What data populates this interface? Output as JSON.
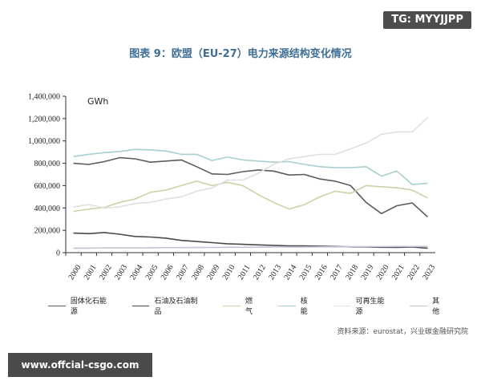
{
  "badge": "TG: MYYJJPP",
  "watermark": "www.offcial-csgo.com",
  "source": "资料来源：eurostat，兴业碳金融研究院",
  "chart_data": {
    "type": "line",
    "title": "图表 9：欧盟（EU-27）电力来源结构变化情况",
    "ylabel": "GWh",
    "xlabel": "",
    "ylim": [
      0,
      1400000
    ],
    "y_ticks": [
      "0",
      "200,000",
      "400,000",
      "600,000",
      "800,000",
      "1,000,000",
      "1,200,000",
      "1,400,000"
    ],
    "legend_position": "bottom",
    "grid": false,
    "categories": [
      "2000",
      "2001",
      "2002",
      "2003",
      "2004",
      "2005",
      "2006",
      "2007",
      "2008",
      "2009",
      "2010",
      "2011",
      "2012",
      "2013",
      "2014",
      "2015",
      "2016",
      "2017",
      "2018",
      "2019",
      "2020",
      "2021",
      "2022",
      "2023"
    ],
    "series": [
      {
        "name": "固体化石能源",
        "color": "#5c5c5c",
        "values": [
          800000,
          790000,
          815000,
          850000,
          840000,
          810000,
          820000,
          830000,
          770000,
          705000,
          700000,
          725000,
          740000,
          730000,
          695000,
          700000,
          660000,
          640000,
          600000,
          450000,
          350000,
          420000,
          445000,
          320000
        ]
      },
      {
        "name": "石油及石油制品",
        "color": "#4a4a4a",
        "values": [
          175000,
          170000,
          180000,
          165000,
          145000,
          140000,
          130000,
          110000,
          100000,
          90000,
          80000,
          75000,
          70000,
          65000,
          60000,
          60000,
          58000,
          55000,
          52000,
          50000,
          48000,
          47000,
          50000,
          40000
        ]
      },
      {
        "name": "燃气",
        "color": "#c8d4a8",
        "values": [
          370000,
          390000,
          405000,
          450000,
          480000,
          540000,
          560000,
          600000,
          640000,
          600000,
          630000,
          600000,
          520000,
          450000,
          390000,
          430000,
          500000,
          550000,
          530000,
          600000,
          590000,
          580000,
          560000,
          490000
        ]
      },
      {
        "name": "核能",
        "color": "#a7d0ce",
        "values": [
          860000,
          880000,
          895000,
          905000,
          925000,
          920000,
          910000,
          880000,
          880000,
          825000,
          855000,
          830000,
          820000,
          810000,
          815000,
          790000,
          770000,
          760000,
          760000,
          770000,
          685000,
          730000,
          610000,
          620000
        ]
      },
      {
        "name": "可再生能源",
        "color": "#e0e0e0",
        "values": [
          410000,
          430000,
          400000,
          410000,
          440000,
          450000,
          480000,
          500000,
          550000,
          580000,
          650000,
          650000,
          710000,
          790000,
          840000,
          860000,
          880000,
          880000,
          930000,
          980000,
          1060000,
          1080000,
          1080000,
          1210000
        ]
      },
      {
        "name": "其他",
        "color": "#c7c1d4",
        "values": [
          40000,
          40000,
          42000,
          42000,
          43000,
          44000,
          45000,
          45000,
          46000,
          47000,
          48000,
          48000,
          49000,
          50000,
          50000,
          51000,
          52000,
          52000,
          53000,
          53000,
          54000,
          55000,
          55000,
          55000
        ]
      }
    ]
  }
}
